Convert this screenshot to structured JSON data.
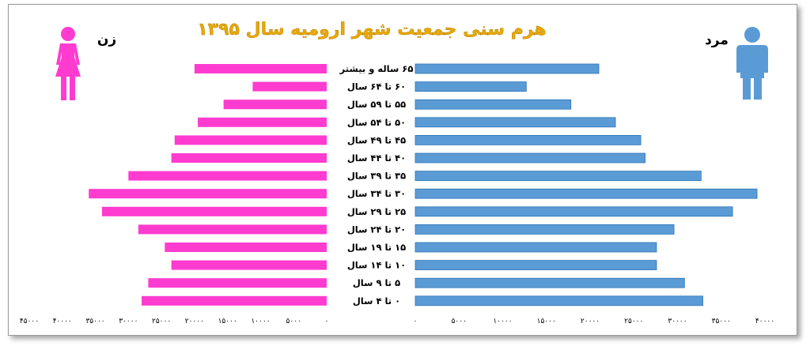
{
  "chart_data": {
    "type": "bar",
    "title": "هرم سنی جمعیت شهر ارومیه سال ۱۳۹۵",
    "categories": [
      "۶۵ ساله و بیشتر",
      "۶۰ تا ۶۴ سال",
      "۵۵ تا ۵۹ سال",
      "۵۰ تا ۵۴ سال",
      "۴۵ تا ۴۹ سال",
      "۴۰ تا ۴۴ سال",
      "۳۵ تا ۳۹ سال",
      "۳۰ تا ۳۴ سال",
      "۲۵ تا ۲۹ سال",
      "۲۰ تا ۲۴ سال",
      "۱۵ تا ۱۹ سال",
      "۱۰ تا ۱۴ سال",
      "۵ تا ۹ سال",
      "۰ تا ۴ سال"
    ],
    "series": [
      {
        "name": "مرد",
        "color": "#5b9bd5",
        "values": [
          21000,
          12700,
          17800,
          22900,
          25800,
          26300,
          32700,
          39100,
          36300,
          29600,
          27600,
          27600,
          30800,
          32900
        ]
      },
      {
        "name": "زن",
        "color": "#ff3ccf",
        "values": [
          20000,
          11200,
          15600,
          19500,
          23000,
          23500,
          30000,
          36000,
          34000,
          28500,
          24500,
          23500,
          27000,
          28000
        ]
      }
    ],
    "female_axis_ticks": [
      "۴۵۰۰۰",
      "۴۰۰۰۰",
      "۳۵۰۰۰",
      "۳۰۰۰۰",
      "۲۵۰۰۰",
      "۲۰۰۰۰",
      "۱۵۰۰۰",
      "۱۰۰۰۰",
      "۵۰۰۰",
      "۰"
    ],
    "male_axis_ticks": [
      "۰",
      "۵۰۰۰",
      "۱۰۰۰۰",
      "۱۵۰۰۰",
      "۲۰۰۰۰",
      "۲۵۰۰۰",
      "۳۰۰۰۰",
      "۳۵۰۰۰",
      "۴۰۰۰۰"
    ],
    "female_xlim": [
      0,
      45000
    ],
    "male_xlim": [
      0,
      40000
    ],
    "icons": {
      "female": "woman-icon",
      "male": "man-icon"
    }
  }
}
